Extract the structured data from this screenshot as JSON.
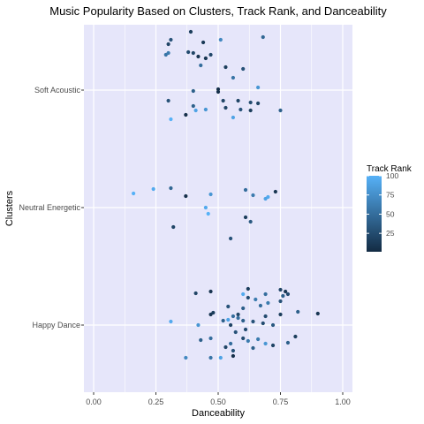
{
  "chart_data": {
    "type": "scatter",
    "title": "Music Popularity Based on Clusters, Track Rank, and Danceability",
    "xlabel": "Danceability",
    "ylabel": "Clusters",
    "xlim": [
      0,
      1
    ],
    "x_ticks": [
      "0.00",
      "0.25",
      "0.50",
      "0.75",
      "1.00"
    ],
    "x_tick_values": [
      0,
      0.25,
      0.5,
      0.75,
      1.0
    ],
    "categories": [
      "Happy Dance",
      "Neutral Energetic",
      "Soft Acoustic"
    ],
    "grid": true,
    "legend": {
      "title": "Track Rank",
      "position": "right",
      "range": [
        1,
        100
      ],
      "ticks": [
        "25",
        "50",
        "75",
        "100"
      ],
      "tick_values": [
        25,
        50,
        75,
        100
      ],
      "low_color": "#132B43",
      "high_color": "#56B1F7"
    },
    "series": [
      {
        "cluster": "Soft Acoustic",
        "points": [
          {
            "x": 0.3,
            "y": 0.52,
            "rank": 20
          },
          {
            "x": 0.31,
            "y": 0.57,
            "rank": 30
          },
          {
            "x": 0.39,
            "y": 0.66,
            "rank": 15
          },
          {
            "x": 0.44,
            "y": 0.54,
            "rank": 12
          },
          {
            "x": 0.51,
            "y": 0.57,
            "rank": 70
          },
          {
            "x": 0.68,
            "y": 0.6,
            "rank": 45
          },
          {
            "x": 0.29,
            "y": 0.4,
            "rank": 55
          },
          {
            "x": 0.3,
            "y": 0.42,
            "rank": 60
          },
          {
            "x": 0.38,
            "y": 0.43,
            "rank": 25
          },
          {
            "x": 0.4,
            "y": 0.42,
            "rank": 20
          },
          {
            "x": 0.42,
            "y": 0.38,
            "rank": 8
          },
          {
            "x": 0.45,
            "y": 0.36,
            "rank": 10
          },
          {
            "x": 0.47,
            "y": 0.4,
            "rank": 22
          },
          {
            "x": 0.43,
            "y": 0.28,
            "rank": 50
          },
          {
            "x": 0.53,
            "y": 0.26,
            "rank": 15
          },
          {
            "x": 0.6,
            "y": 0.24,
            "rank": 30
          },
          {
            "x": 0.56,
            "y": 0.14,
            "rank": 55
          },
          {
            "x": 0.5,
            "y": 0.01,
            "rank": 5
          },
          {
            "x": 0.5,
            "y": -0.02,
            "rank": 5
          },
          {
            "x": 0.4,
            "y": -0.01,
            "rank": 40
          },
          {
            "x": 0.66,
            "y": 0.03,
            "rank": 80
          },
          {
            "x": 0.52,
            "y": -0.12,
            "rank": 20
          },
          {
            "x": 0.58,
            "y": -0.12,
            "rank": 20
          },
          {
            "x": 0.3,
            "y": -0.12,
            "rank": 30
          },
          {
            "x": 0.63,
            "y": -0.14,
            "rank": 25
          },
          {
            "x": 0.4,
            "y": -0.18,
            "rank": 40
          },
          {
            "x": 0.45,
            "y": -0.22,
            "rank": 80
          },
          {
            "x": 0.41,
            "y": -0.23,
            "rank": 90
          },
          {
            "x": 0.53,
            "y": -0.2,
            "rank": 20
          },
          {
            "x": 0.59,
            "y": -0.22,
            "rank": 30
          },
          {
            "x": 0.63,
            "y": -0.23,
            "rank": 15
          },
          {
            "x": 0.66,
            "y": -0.15,
            "rank": 20
          },
          {
            "x": 0.75,
            "y": -0.23,
            "rank": 40
          },
          {
            "x": 0.37,
            "y": -0.28,
            "rank": 5
          },
          {
            "x": 0.56,
            "y": -0.31,
            "rank": 90
          },
          {
            "x": 0.31,
            "y": -0.33,
            "rank": 100
          }
        ]
      },
      {
        "cluster": "Neutral Energetic",
        "points": [
          {
            "x": 0.16,
            "y": 0.16,
            "rank": 100
          },
          {
            "x": 0.24,
            "y": 0.21,
            "rank": 95
          },
          {
            "x": 0.31,
            "y": 0.22,
            "rank": 45
          },
          {
            "x": 0.37,
            "y": 0.13,
            "rank": 5
          },
          {
            "x": 0.47,
            "y": 0.15,
            "rank": 80
          },
          {
            "x": 0.61,
            "y": 0.2,
            "rank": 50
          },
          {
            "x": 0.73,
            "y": 0.18,
            "rank": 10
          },
          {
            "x": 0.7,
            "y": 0.12,
            "rank": 95
          },
          {
            "x": 0.69,
            "y": 0.1,
            "rank": 90
          },
          {
            "x": 0.64,
            "y": 0.14,
            "rank": 60
          },
          {
            "x": 0.45,
            "y": 0.0,
            "rank": 95
          },
          {
            "x": 0.46,
            "y": -0.07,
            "rank": 100
          },
          {
            "x": 0.61,
            "y": -0.11,
            "rank": 15
          },
          {
            "x": 0.63,
            "y": -0.16,
            "rank": 35
          },
          {
            "x": 0.32,
            "y": -0.22,
            "rank": 20
          },
          {
            "x": 0.55,
            "y": -0.35,
            "rank": 30
          }
        ]
      },
      {
        "cluster": "Happy Dance",
        "points": [
          {
            "x": 0.62,
            "y": 0.41,
            "rank": 15
          },
          {
            "x": 0.75,
            "y": 0.4,
            "rank": 20
          },
          {
            "x": 0.77,
            "y": 0.38,
            "rank": 10
          },
          {
            "x": 0.69,
            "y": 0.35,
            "rank": 50
          },
          {
            "x": 0.78,
            "y": 0.35,
            "rank": 25
          },
          {
            "x": 0.47,
            "y": 0.38,
            "rank": 8
          },
          {
            "x": 0.6,
            "y": 0.35,
            "rank": 95
          },
          {
            "x": 0.41,
            "y": 0.36,
            "rank": 20
          },
          {
            "x": 0.76,
            "y": 0.33,
            "rank": 40
          },
          {
            "x": 0.62,
            "y": 0.31,
            "rank": 25
          },
          {
            "x": 0.65,
            "y": 0.29,
            "rank": 60
          },
          {
            "x": 0.75,
            "y": 0.27,
            "rank": 30
          },
          {
            "x": 0.7,
            "y": 0.25,
            "rank": 60
          },
          {
            "x": 0.54,
            "y": 0.21,
            "rank": 30
          },
          {
            "x": 0.67,
            "y": 0.22,
            "rank": 50
          },
          {
            "x": 0.6,
            "y": 0.19,
            "rank": 40
          },
          {
            "x": 0.48,
            "y": 0.14,
            "rank": 15
          },
          {
            "x": 0.82,
            "y": 0.15,
            "rank": 40
          },
          {
            "x": 0.9,
            "y": 0.13,
            "rank": 10
          },
          {
            "x": 0.75,
            "y": 0.12,
            "rank": 15
          },
          {
            "x": 0.47,
            "y": 0.12,
            "rank": 10
          },
          {
            "x": 0.56,
            "y": 0.1,
            "rank": 50
          },
          {
            "x": 0.58,
            "y": 0.12,
            "rank": 20
          },
          {
            "x": 0.69,
            "y": 0.1,
            "rank": 25
          },
          {
            "x": 0.52,
            "y": 0.05,
            "rank": 40
          },
          {
            "x": 0.54,
            "y": 0.06,
            "rank": 90
          },
          {
            "x": 0.58,
            "y": 0.08,
            "rank": 50
          },
          {
            "x": 0.6,
            "y": 0.05,
            "rank": 40
          },
          {
            "x": 0.31,
            "y": 0.04,
            "rank": 95
          },
          {
            "x": 0.64,
            "y": 0.04,
            "rank": 30
          },
          {
            "x": 0.68,
            "y": 0.02,
            "rank": 25
          },
          {
            "x": 0.72,
            "y": 0.0,
            "rank": 35
          },
          {
            "x": 0.42,
            "y": 0.0,
            "rank": 80
          },
          {
            "x": 0.55,
            "y": 0.0,
            "rank": 20
          },
          {
            "x": 0.61,
            "y": -0.05,
            "rank": 25
          },
          {
            "x": 0.57,
            "y": -0.08,
            "rank": 30
          },
          {
            "x": 0.81,
            "y": -0.13,
            "rank": 15
          },
          {
            "x": 0.78,
            "y": -0.2,
            "rank": 40
          },
          {
            "x": 0.43,
            "y": -0.17,
            "rank": 40
          },
          {
            "x": 0.47,
            "y": -0.15,
            "rank": 50
          },
          {
            "x": 0.6,
            "y": -0.15,
            "rank": 25
          },
          {
            "x": 0.62,
            "y": -0.18,
            "rank": 60
          },
          {
            "x": 0.66,
            "y": -0.16,
            "rank": 60
          },
          {
            "x": 0.69,
            "y": -0.21,
            "rank": 80
          },
          {
            "x": 0.72,
            "y": -0.23,
            "rank": 20
          },
          {
            "x": 0.55,
            "y": -0.21,
            "rank": 50
          },
          {
            "x": 0.64,
            "y": -0.26,
            "rank": 40
          },
          {
            "x": 0.53,
            "y": -0.25,
            "rank": 20
          },
          {
            "x": 0.56,
            "y": -0.29,
            "rank": 30
          },
          {
            "x": 0.37,
            "y": -0.37,
            "rank": 70
          },
          {
            "x": 0.47,
            "y": -0.37,
            "rank": 55
          },
          {
            "x": 0.51,
            "y": -0.37,
            "rank": 90
          },
          {
            "x": 0.56,
            "y": -0.35,
            "rank": 5
          }
        ]
      }
    ]
  }
}
